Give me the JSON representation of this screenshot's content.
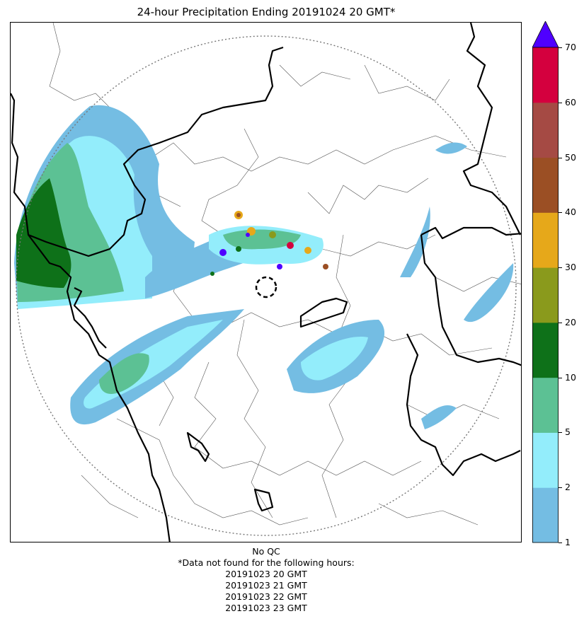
{
  "title": "24-hour Precipitation Ending 20191024 20 GMT*",
  "colorbar": {
    "unit": "",
    "levels": [
      1,
      2,
      5,
      10,
      20,
      30,
      40,
      50,
      60,
      70
    ],
    "tick_labels": [
      "1",
      "2",
      "5",
      "10",
      "20",
      "30",
      "40",
      "50",
      "60",
      "70"
    ],
    "colors": [
      "#74bde3",
      "#93edfb",
      "#5cc194",
      "#0e7119",
      "#8a9a1c",
      "#e6a81a",
      "#9b4f24",
      "#a54a44",
      "#d4003e"
    ],
    "extend_color": "#4f00ff"
  },
  "map": {
    "range_ring": "dotted",
    "radar_site_marker": "dashed-circle",
    "boundaries": [
      "international",
      "state",
      "district"
    ]
  },
  "footer": {
    "qc_note": "No QC",
    "missing_note": "*Data not found for the following hours:",
    "missing_hours": [
      "20191023 20 GMT",
      "20191023 21 GMT",
      "20191023 22 GMT",
      "20191023 23 GMT"
    ]
  }
}
